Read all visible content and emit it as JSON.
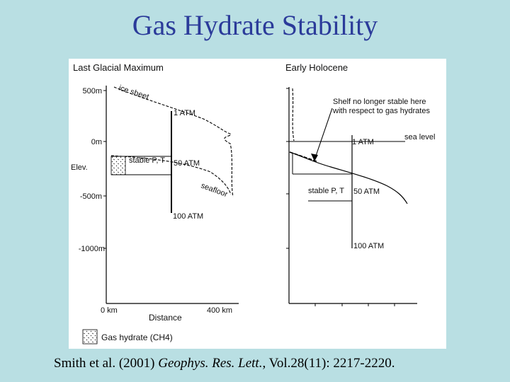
{
  "title": "Gas Hydrate Stability",
  "left_panel": {
    "heading": "Last Glacial Maximum",
    "y_labels": [
      "500m",
      "0m",
      "-500m",
      "-1000m"
    ],
    "elev_label": "Elev.",
    "ice_sheet_label": "ice sheet",
    "seafloor_label": "seafloor",
    "stable_label": "stable P, T",
    "pressure_labels": [
      "1 ATM",
      "50 ATM",
      "100 ATM"
    ],
    "x_labels": [
      "0 km",
      "400 km"
    ],
    "x_axis_title": "Distance",
    "legend_label": "Gas hydrate (CH4)"
  },
  "right_panel": {
    "heading": "Early Holocene",
    "annotation_line1": "Shelf no longer stable here",
    "annotation_line2": "with respect to gas hydrates",
    "sea_level_label": "sea level",
    "stable_label": "stable P, T",
    "pressure_labels": [
      "1 ATM",
      "50 ATM",
      "100 ATM"
    ]
  },
  "citation": {
    "prefix": "Smith et al. (2001) ",
    "journal": "Geophys. Res. Lett.",
    "suffix": ", Vol.28(11): 2217-2220."
  },
  "colors": {
    "background": "#b9dfe3",
    "title": "#2b3b9a"
  }
}
